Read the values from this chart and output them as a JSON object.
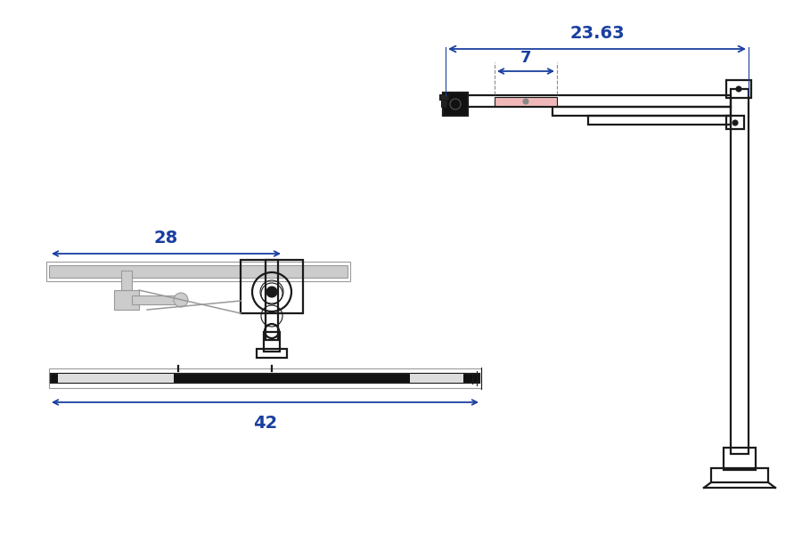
{
  "bg_color": "#ffffff",
  "line_color": "#1a1a1a",
  "gray_color": "#999999",
  "gray_light": "#cccccc",
  "dim_color": "#1a3fa0",
  "pink_color": "#f0b8b8",
  "dim_28": "28",
  "dim_42": "42",
  "dim_2363": "23.63",
  "dim_7": "7",
  "lw_main": 1.6,
  "lw_thin": 0.8,
  "lw_dim": 1.3
}
